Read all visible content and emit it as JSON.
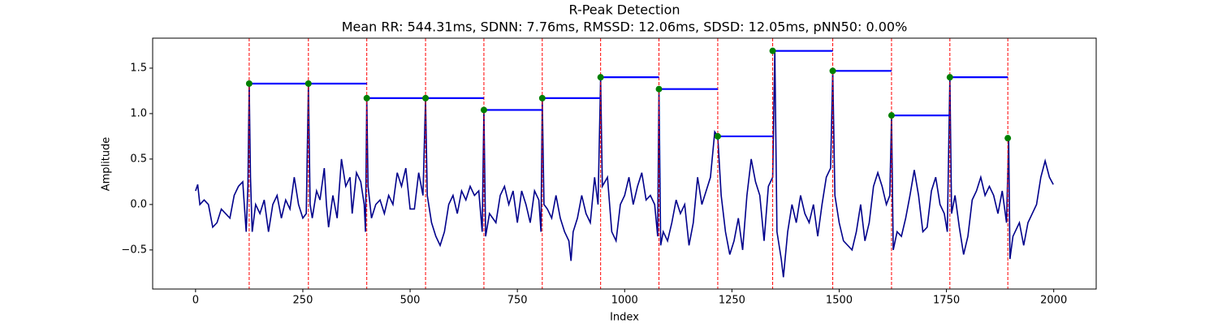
{
  "chart_data": {
    "type": "line",
    "title": "R-Peak Detection",
    "subtitle": "Mean RR: 544.31ms, SDNN: 7.76ms, RMSSD: 12.06ms, SDSD: 12.05ms, pNN50: 0.00%",
    "x_label": "Index",
    "y_label": "Amplitude",
    "xlim": [
      -100,
      2099
    ],
    "ylim": [
      -0.93,
      1.83
    ],
    "xticks": [
      0,
      250,
      500,
      750,
      1000,
      1250,
      1500,
      1750,
      2000
    ],
    "yticks": [
      {
        "value": -0.5,
        "label": "−0.5"
      },
      {
        "value": 0,
        "label": "0.0"
      },
      {
        "value": 0.5,
        "label": "0.5"
      },
      {
        "value": 1,
        "label": "1.0"
      },
      {
        "value": 1.5,
        "label": "1.5"
      }
    ],
    "peak_line_color": "red",
    "rr_segment_color": "blue",
    "series": [
      {
        "kind": "line",
        "color": "darkblue",
        "x": [
          0,
          5,
          10,
          20,
          30,
          40,
          50,
          60,
          70,
          80,
          90,
          100,
          110,
          115,
          118,
          122,
          125,
          128,
          132,
          140,
          150,
          160,
          170,
          180,
          190,
          200,
          210,
          220,
          230,
          240,
          250,
          258,
          263,
          267,
          272,
          282,
          290,
          300,
          305,
          310,
          320,
          330,
          340,
          350,
          360,
          365,
          375,
          385,
          393,
          396,
          399,
          402,
          410,
          420,
          430,
          440,
          450,
          460,
          470,
          480,
          490,
          500,
          510,
          520,
          530,
          536,
          540,
          550,
          560,
          570,
          580,
          590,
          600,
          610,
          620,
          630,
          640,
          650,
          660,
          668,
          672,
          676,
          685,
          700,
          710,
          720,
          730,
          740,
          750,
          760,
          770,
          780,
          790,
          800,
          805,
          808,
          812,
          820,
          830,
          840,
          850,
          860,
          870,
          875,
          880,
          890,
          900,
          910,
          920,
          930,
          938,
          944,
          948,
          960,
          970,
          980,
          990,
          1000,
          1010,
          1020,
          1030,
          1040,
          1050,
          1060,
          1070,
          1077,
          1080,
          1084,
          1090,
          1100,
          1110,
          1120,
          1130,
          1140,
          1150,
          1160,
          1170,
          1180,
          1190,
          1200,
          1210,
          1217,
          1225,
          1235,
          1245,
          1255,
          1265,
          1275,
          1285,
          1295,
          1305,
          1315,
          1325,
          1335,
          1345,
          1350,
          1355,
          1365,
          1370,
          1380,
          1390,
          1400,
          1410,
          1420,
          1430,
          1440,
          1450,
          1460,
          1470,
          1480,
          1485,
          1490,
          1500,
          1510,
          1520,
          1530,
          1540,
          1550,
          1560,
          1570,
          1580,
          1590,
          1600,
          1610,
          1618,
          1622,
          1626,
          1635,
          1645,
          1655,
          1665,
          1675,
          1685,
          1695,
          1705,
          1715,
          1725,
          1735,
          1745,
          1752,
          1758,
          1762,
          1770,
          1780,
          1790,
          1800,
          1810,
          1820,
          1830,
          1840,
          1850,
          1860,
          1870,
          1880,
          1890,
          1895,
          1898,
          1905,
          1920,
          1930,
          1940,
          1950,
          1960,
          1970,
          1980,
          1990,
          1999
        ],
        "values": [
          0.15,
          0.22,
          0.0,
          0.05,
          0.0,
          -0.25,
          -0.2,
          -0.05,
          -0.1,
          -0.15,
          0.1,
          0.2,
          0.25,
          -0.1,
          -0.3,
          0.2,
          1.33,
          0.3,
          -0.3,
          0.0,
          -0.1,
          0.05,
          -0.3,
          0.0,
          0.1,
          -0.15,
          0.05,
          -0.05,
          0.3,
          0.0,
          -0.15,
          -0.1,
          1.33,
          0.0,
          -0.15,
          0.15,
          0.05,
          0.4,
          0.0,
          -0.25,
          0.1,
          -0.15,
          0.5,
          0.2,
          0.3,
          -0.1,
          0.35,
          0.25,
          0.0,
          -0.3,
          1.17,
          0.2,
          -0.15,
          0.0,
          0.05,
          -0.1,
          0.1,
          0.0,
          0.35,
          0.2,
          0.4,
          -0.05,
          -0.05,
          0.35,
          0.1,
          1.17,
          0.1,
          -0.2,
          -0.35,
          -0.45,
          -0.3,
          0.0,
          0.1,
          -0.1,
          0.15,
          0.05,
          0.2,
          0.1,
          0.15,
          -0.3,
          1.04,
          -0.35,
          -0.1,
          -0.2,
          0.1,
          0.2,
          0.0,
          0.15,
          -0.2,
          0.15,
          0.0,
          -0.2,
          0.15,
          0.05,
          -0.3,
          1.17,
          0.0,
          -0.05,
          -0.15,
          0.1,
          -0.15,
          -0.3,
          -0.4,
          -0.62,
          -0.3,
          -0.15,
          0.1,
          -0.1,
          -0.2,
          0.3,
          0.0,
          1.4,
          0.2,
          0.3,
          -0.3,
          -0.4,
          0.0,
          0.1,
          0.3,
          0.0,
          0.2,
          0.35,
          0.05,
          0.1,
          0.0,
          -0.35,
          1.27,
          -0.45,
          -0.3,
          -0.4,
          -0.2,
          0.05,
          -0.1,
          0.0,
          -0.45,
          -0.2,
          0.3,
          0.0,
          0.15,
          0.3,
          0.8,
          0.75,
          0.1,
          -0.3,
          -0.55,
          -0.4,
          -0.15,
          -0.5,
          0.1,
          0.5,
          0.25,
          0.1,
          -0.4,
          0.2,
          0.3,
          1.69,
          -0.3,
          -0.6,
          -0.8,
          -0.3,
          0.0,
          -0.2,
          0.1,
          -0.1,
          -0.2,
          0.0,
          -0.35,
          0.0,
          0.3,
          0.4,
          1.47,
          0.1,
          -0.2,
          -0.4,
          -0.45,
          -0.5,
          -0.3,
          0.0,
          -0.4,
          -0.2,
          0.2,
          0.35,
          0.2,
          0.0,
          0.1,
          0.98,
          -0.5,
          -0.3,
          -0.35,
          -0.15,
          0.1,
          0.38,
          0.1,
          -0.3,
          -0.25,
          0.15,
          0.3,
          0.0,
          -0.1,
          -0.3,
          1.4,
          -0.1,
          0.1,
          -0.25,
          -0.55,
          -0.35,
          0.05,
          0.15,
          0.3,
          0.1,
          0.2,
          0.1,
          -0.1,
          0.15,
          -0.2,
          0.73,
          -0.6,
          -0.35,
          -0.2,
          -0.45,
          -0.2,
          -0.1,
          0.0,
          0.3,
          0.48,
          0.3,
          0.22
        ]
      },
      {
        "kind": "peaks",
        "color": "green",
        "x": [
          125,
          263,
          399,
          536,
          672,
          808,
          944,
          1080,
          1217,
          1345,
          1485,
          1622,
          1758,
          1893
        ],
        "values": [
          1.33,
          1.33,
          1.17,
          1.17,
          1.04,
          1.17,
          1.4,
          1.27,
          0.75,
          1.69,
          1.47,
          0.98,
          1.4,
          0.73
        ]
      }
    ]
  }
}
